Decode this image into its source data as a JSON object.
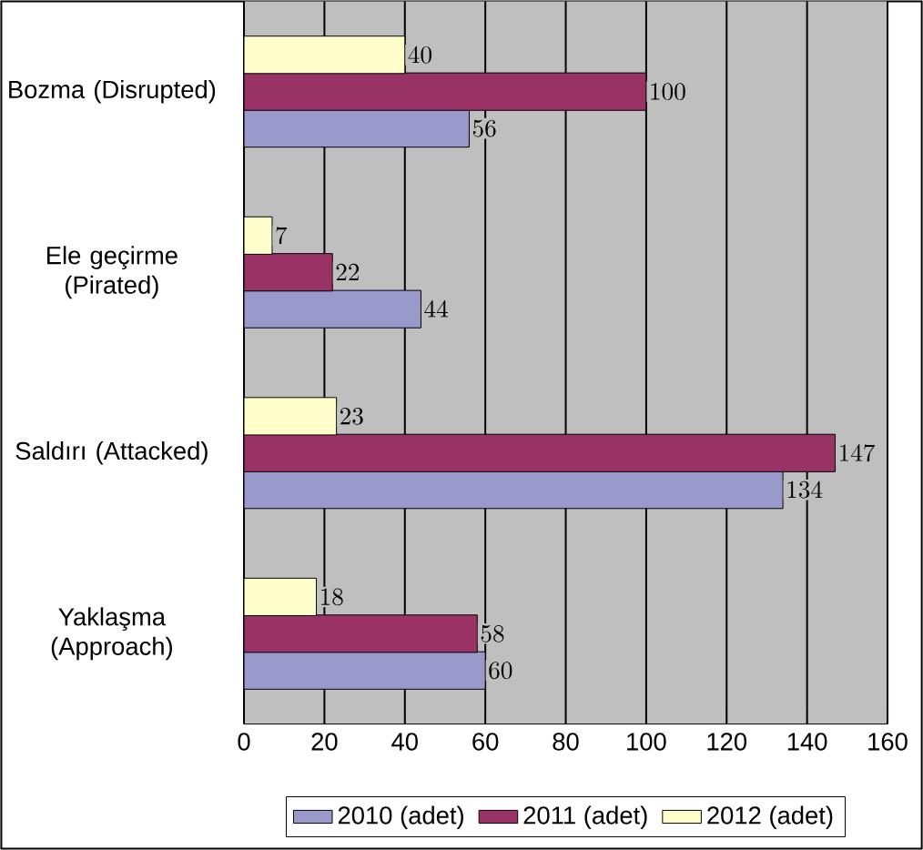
{
  "chart_data": {
    "type": "bar",
    "orientation": "horizontal",
    "categories": [
      "Bozma (Disrupted)",
      "Ele geçirme (Pirated)",
      "Saldırı (Attacked)",
      "Yaklaşma (Approach)"
    ],
    "series": [
      {
        "name": "2010 (adet)",
        "color": "#9999cc",
        "values": [
          56,
          44,
          134,
          60
        ]
      },
      {
        "name": "2011 (adet)",
        "color": "#993366",
        "values": [
          100,
          22,
          147,
          58
        ]
      },
      {
        "name": "2012 (adet)",
        "color": "#ffffcc",
        "values": [
          40,
          7,
          23,
          18
        ]
      }
    ],
    "xlim": [
      0,
      160
    ],
    "xticks": [
      0,
      20,
      40,
      60,
      80,
      100,
      120,
      140,
      160
    ],
    "grid": "x",
    "legend": "bottom",
    "data_labels": true
  }
}
